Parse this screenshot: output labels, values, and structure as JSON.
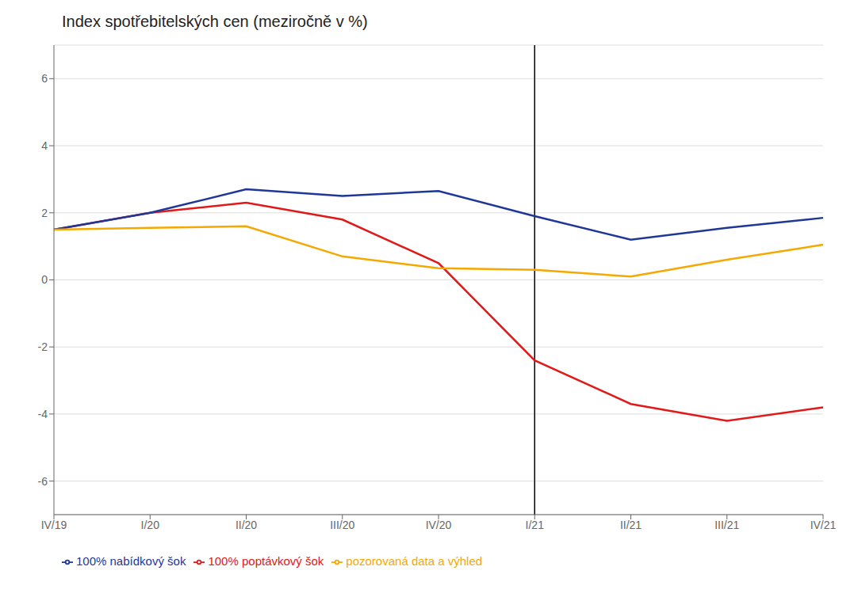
{
  "chart_data": {
    "type": "line",
    "title": "Index spotřebitelských cen (meziročně v %)",
    "categories": [
      "IV/19",
      "I/20",
      "II/20",
      "III/20",
      "IV/20",
      "I/21",
      "II/21",
      "III/21",
      "IV/21"
    ],
    "series": [
      {
        "name": "100% poptávkový šok",
        "color": "#e01919",
        "values": [
          1.5,
          2.0,
          2.3,
          1.8,
          0.5,
          -2.4,
          -3.7,
          -4.2,
          -3.8
        ]
      },
      {
        "name": "100% nabídkový šok",
        "color": "#1e3799",
        "values": [
          1.5,
          2.0,
          2.7,
          2.5,
          2.65,
          1.9,
          1.2,
          1.55,
          1.85
        ]
      },
      {
        "name": "pozorovaná data a výhled",
        "color": "#f5a800",
        "values": [
          1.5,
          1.55,
          1.6,
          0.7,
          0.35,
          0.3,
          0.1,
          0.6,
          1.05
        ]
      }
    ],
    "ylim": [
      -7,
      7
    ],
    "yticks": [
      -6,
      -4,
      -2,
      0,
      2,
      4,
      6
    ],
    "grid": true,
    "legend": "bottom",
    "vertical_line": "I/21"
  }
}
